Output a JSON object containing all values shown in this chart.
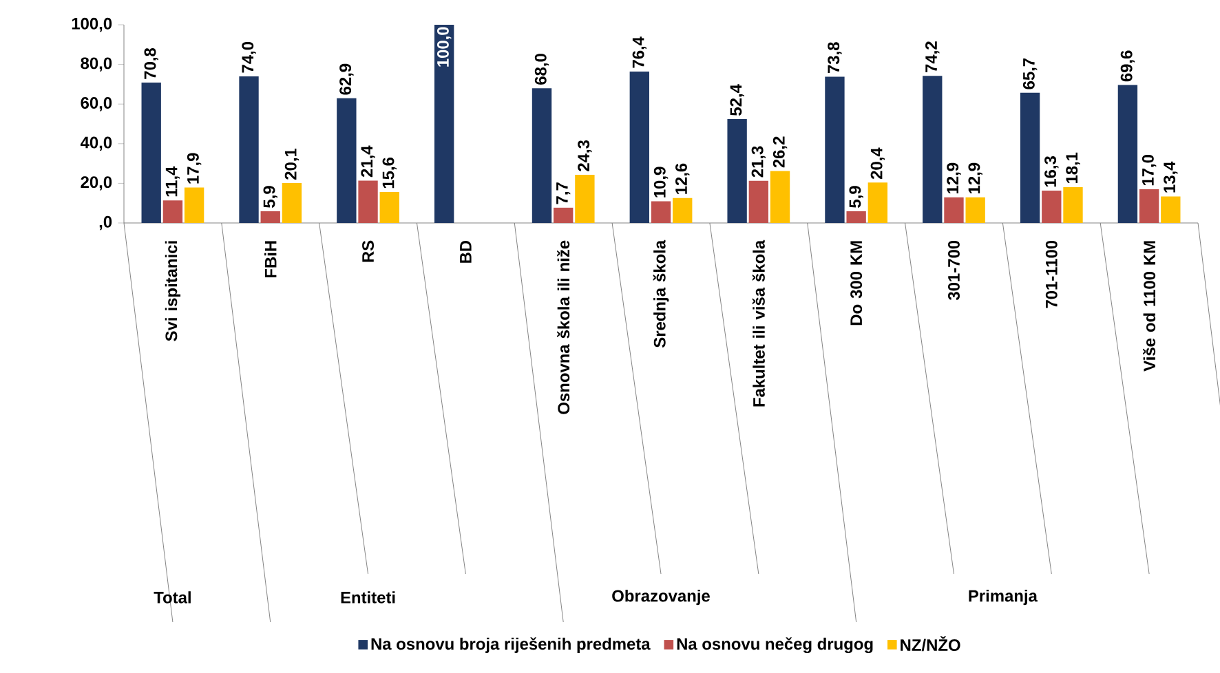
{
  "chart_data": {
    "type": "bar",
    "categories": [
      "Svi ispitanici",
      "FBiH",
      "RS",
      "BD",
      "Osnovna škola ili niže",
      "Srednja škola",
      "Fakultet ili viša škola",
      "Do 300 KM",
      "301-700",
      "701-1100",
      "Više od 1100 KM"
    ],
    "series": [
      {
        "name": "Na osnovu broja riješenih predmeta",
        "color": "#1f3864",
        "values": [
          70.8,
          74.0,
          62.9,
          100.0,
          68.0,
          76.4,
          52.4,
          73.8,
          74.2,
          65.7,
          69.6
        ],
        "value_labels": [
          "70,8",
          "74,0",
          "62,9",
          "100,0",
          "68,0",
          "76,4",
          "52,4",
          "73,8",
          "74,2",
          "65,7",
          "69,6"
        ]
      },
      {
        "name": "Na osnovu nečeg drugog",
        "color": "#c0504d",
        "values": [
          11.4,
          5.9,
          21.4,
          null,
          7.7,
          10.9,
          21.3,
          5.9,
          12.9,
          16.3,
          17.0
        ],
        "value_labels": [
          "11,4",
          "5,9",
          "21,4",
          null,
          "7,7",
          "10,9",
          "21,3",
          "5,9",
          "12,9",
          "16,3",
          "17,0"
        ]
      },
      {
        "name": "NZ/NŽO",
        "color": "#ffc000",
        "values": [
          17.9,
          20.1,
          15.6,
          null,
          24.3,
          12.6,
          26.2,
          20.4,
          12.9,
          18.1,
          13.4
        ],
        "value_labels": [
          "17,9",
          "20,1",
          "15,6",
          null,
          "24,3",
          "12,6",
          "26,2",
          "20,4",
          "12,9",
          "18,1",
          "13,4"
        ]
      }
    ],
    "ylim": [
      0,
      100
    ],
    "yticks": [
      {
        "value": 0,
        "label": ",0"
      },
      {
        "value": 20,
        "label": "20,0"
      },
      {
        "value": 40,
        "label": "40,0"
      },
      {
        "value": 60,
        "label": "60,0"
      },
      {
        "value": 80,
        "label": "80,0"
      },
      {
        "value": 100,
        "label": "100,0"
      }
    ],
    "annotations": [
      "Total",
      "Entiteti",
      "Obrazovanje",
      "Primanja"
    ],
    "legend": "bottom"
  }
}
